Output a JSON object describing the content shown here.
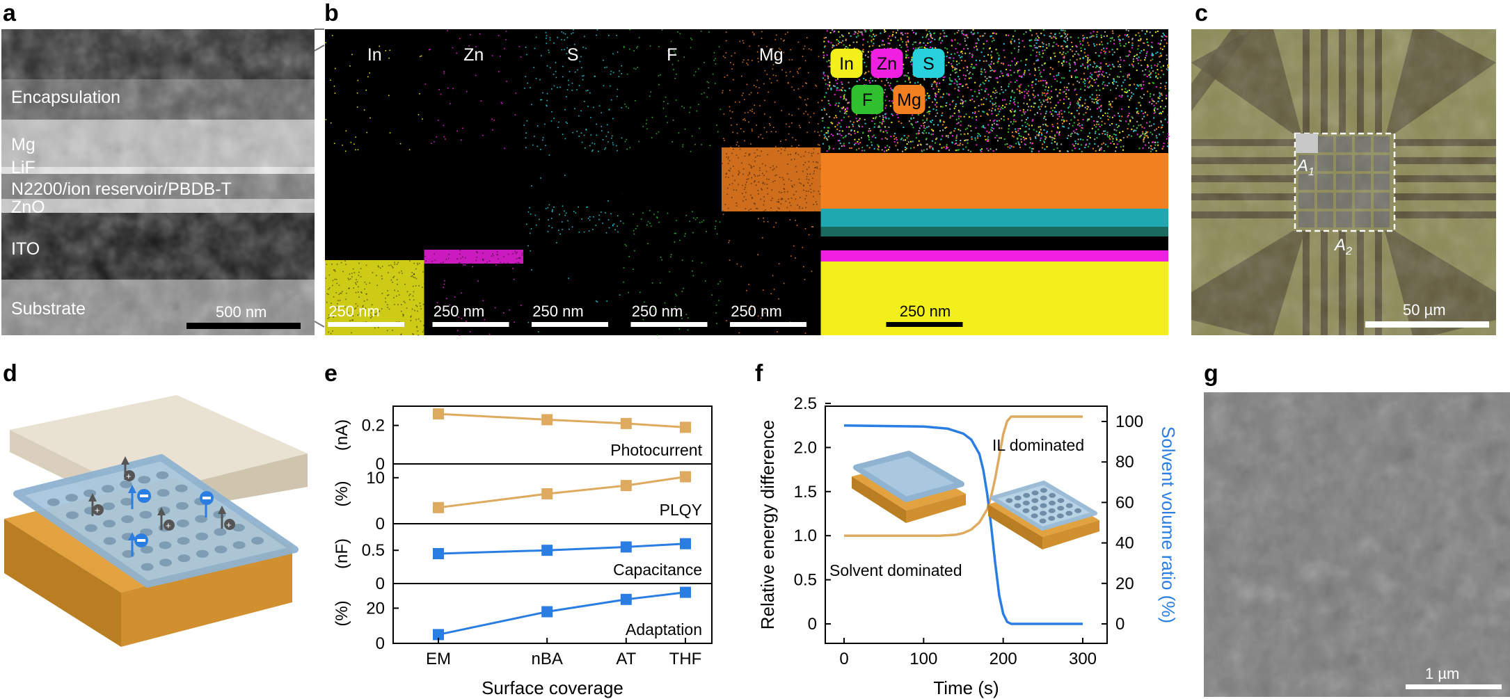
{
  "panel_labels": {
    "a": "a",
    "b": "b",
    "c": "c",
    "d": "d",
    "e": "e",
    "f": "f",
    "g": "g"
  },
  "panel_a": {
    "layers": [
      "Encapsulation",
      "Mg",
      "LiF",
      "N2200/ion reservoir/PBDB-T",
      "ZnO",
      "ITO",
      "Substrate"
    ],
    "scalebar": "500 nm"
  },
  "panel_b": {
    "elements": [
      {
        "name": "In",
        "color": "#f2ef1a"
      },
      {
        "name": "Zn",
        "color": "#ef20df"
      },
      {
        "name": "S",
        "color": "#27d2dc"
      },
      {
        "name": "F",
        "color": "#2fbf2f"
      },
      {
        "name": "Mg",
        "color": "#f28020"
      }
    ],
    "legend": [
      "In",
      "Zn",
      "S",
      "F",
      "Mg"
    ],
    "scalebar": "250 nm"
  },
  "panel_c": {
    "label_a1": "A",
    "label_a1_sub": "1",
    "label_a2": "A",
    "label_a2_sub": "2",
    "scalebar": "50 µm"
  },
  "panel_e": {
    "xlabel": "Surface coverage",
    "categories": [
      "EM",
      "nBA",
      "AT",
      "THF"
    ],
    "subplots": [
      {
        "name": "Photocurrent",
        "unit": "(nA)",
        "ticks": [
          "0.2",
          "0"
        ],
        "color": "#deaa5f"
      },
      {
        "name": "PLQY",
        "unit": "(%)",
        "ticks": [
          "10",
          "0"
        ],
        "color": "#deaa5f"
      },
      {
        "name": "Capacitance",
        "unit": "(nF)",
        "ticks": [
          "0.5",
          "0"
        ],
        "color": "#2a7de1"
      },
      {
        "name": "Adaptation",
        "unit": "(%)",
        "ticks": [
          "20",
          "0"
        ],
        "color": "#2a7de1"
      }
    ]
  },
  "panel_f": {
    "xlabel": "Time (s)",
    "ylabel_left": "Relative energy difference",
    "ylabel_right": "Solvent volume ratio (%)",
    "xticks": [
      "0",
      "100",
      "200",
      "300"
    ],
    "yticks_left": [
      "0",
      "0.5",
      "1.0",
      "1.5",
      "2.0",
      "2.5"
    ],
    "yticks_right": [
      "0",
      "20",
      "40",
      "60",
      "80",
      "100"
    ],
    "annot_il": "IL dominated",
    "annot_solvent": "Solvent dominated"
  },
  "panel_g": {
    "scalebar": "1 µm"
  },
  "chart_data": [
    {
      "type": "line",
      "categories": [
        "EM",
        "nBA",
        "AT",
        "THF"
      ],
      "x_positions": [
        0,
        0.44,
        0.76,
        1.0
      ],
      "series": [
        {
          "name": "Photocurrent",
          "values": [
            0.26,
            0.23,
            0.21,
            0.19
          ],
          "ylim": [
            0,
            0.3
          ]
        },
        {
          "name": "PLQY",
          "values": [
            3.5,
            6.5,
            8.3,
            10.2
          ],
          "ylim": [
            0,
            13
          ]
        },
        {
          "name": "Capacitance",
          "values": [
            0.45,
            0.5,
            0.55,
            0.6
          ],
          "ylim": [
            0,
            0.9
          ]
        },
        {
          "name": "Adaptation",
          "values": [
            5,
            18,
            25,
            29
          ],
          "ylim": [
            0,
            34
          ]
        }
      ],
      "xlabel": "Surface coverage"
    },
    {
      "type": "line",
      "xlim": [
        0,
        300
      ],
      "ylim_left": [
        0,
        2.5
      ],
      "ylim_right": [
        0,
        100
      ],
      "series": [
        {
          "name": "Relative energy difference",
          "axis": "left",
          "color": "#deaa5f",
          "x": [
            0,
            120,
            140,
            150,
            160,
            170,
            180,
            185,
            190,
            195,
            200,
            205,
            210,
            230,
            300
          ],
          "y": [
            1.0,
            1.0,
            1.01,
            1.03,
            1.07,
            1.15,
            1.3,
            1.45,
            1.65,
            1.9,
            2.15,
            2.3,
            2.35,
            2.35,
            2.35
          ]
        },
        {
          "name": "Solvent volume ratio",
          "axis": "right",
          "color": "#2a7de1",
          "x": [
            0,
            100,
            130,
            150,
            160,
            170,
            175,
            180,
            185,
            190,
            195,
            200,
            205,
            210,
            300
          ],
          "y": [
            98,
            97.5,
            96.5,
            94,
            91,
            84,
            76,
            64,
            48,
            30,
            14,
            5,
            1,
            0,
            0
          ]
        }
      ]
    }
  ]
}
